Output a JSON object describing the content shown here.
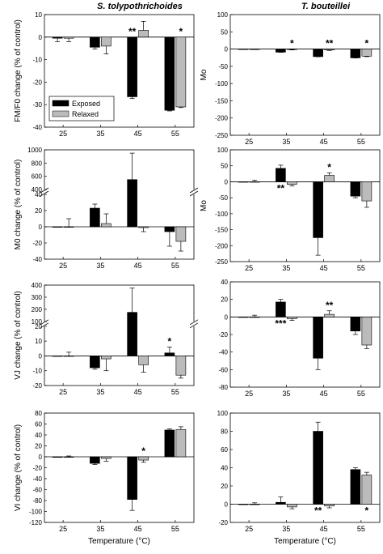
{
  "columns": [
    {
      "title": "S. tolypothrichoides"
    },
    {
      "title": "T. bouteillei"
    }
  ],
  "legend": {
    "exposed": "Exposed",
    "relaxed": "Relaxed"
  },
  "colors": {
    "exposed": "#000000",
    "relaxed": "#bbbbbb"
  },
  "chart_data": [
    {
      "type": "bar",
      "panel": "A1",
      "categories": [
        "25",
        "35",
        "45",
        "55"
      ],
      "xlabel": "",
      "ylabel": "FM/F0 change (% of control)",
      "ylim": [
        -40,
        10
      ],
      "yticks": [
        -40,
        -30,
        -20,
        -10,
        0,
        10
      ],
      "legend_position": "lower-left",
      "series": [
        {
          "name": "Exposed",
          "values": [
            -0.5,
            -4.5,
            -26.5,
            -32.5
          ],
          "errors": [
            1.5,
            0.8,
            0.8,
            0.3
          ]
        },
        {
          "name": "Relaxed",
          "values": [
            -0.5,
            -4,
            3,
            -31
          ],
          "errors": [
            1.5,
            3.5,
            4,
            0.3
          ]
        }
      ],
      "annotations": [
        {
          "category": "45",
          "series": "Exposed",
          "text": "**"
        },
        {
          "category": "55",
          "series": "Relaxed",
          "text": "*"
        }
      ]
    },
    {
      "type": "bar",
      "panel": "A2",
      "categories": [
        "25",
        "35",
        "45",
        "55"
      ],
      "xlabel": "",
      "ylabel": "Mo",
      "ylim": [
        -250,
        100
      ],
      "yticks": [
        -250,
        -200,
        -150,
        -100,
        -50,
        0,
        50,
        100
      ],
      "series": [
        {
          "name": "Exposed",
          "values": [
            0,
            -9,
            -22,
            -25.5
          ],
          "errors": [
            0,
            0.5,
            0.3,
            0.3
          ]
        },
        {
          "name": "Relaxed",
          "values": [
            0,
            -1,
            -2.5,
            -20.5
          ],
          "errors": [
            0.5,
            1.5,
            1.5,
            1.5
          ]
        }
      ],
      "annotations": [
        {
          "category": "35",
          "series": "Relaxed",
          "text": "*"
        },
        {
          "category": "45",
          "series": "Relaxed",
          "text": "**"
        },
        {
          "category": "55",
          "series": "Relaxed",
          "text": "*"
        }
      ]
    },
    {
      "type": "bar",
      "panel": "B1",
      "categories": [
        "25",
        "35",
        "45",
        "55"
      ],
      "xlabel": "",
      "ylabel": "M0 change (% of control)",
      "ylim": [
        -40,
        1000
      ],
      "yticks": [
        -40,
        -20,
        0,
        20,
        40,
        400,
        600,
        800,
        1000
      ],
      "axis_break": [
        40,
        400
      ],
      "series": [
        {
          "name": "Exposed",
          "values": [
            0,
            23,
            550,
            -6
          ],
          "errors": [
            0,
            5,
            400,
            18
          ]
        },
        {
          "name": "Relaxed",
          "values": [
            0,
            4,
            -1,
            -18
          ],
          "errors": [
            10,
            12,
            5,
            12
          ]
        }
      ]
    },
    {
      "type": "bar",
      "panel": "B2",
      "categories": [
        "25",
        "35",
        "45",
        "55"
      ],
      "xlabel": "",
      "ylabel": "Mo",
      "ylim": [
        -250,
        100
      ],
      "yticks": [
        -250,
        -200,
        -150,
        -100,
        -50,
        0,
        50,
        100
      ],
      "series": [
        {
          "name": "Exposed",
          "values": [
            0,
            42,
            -175,
            -45
          ],
          "errors": [
            0,
            10,
            55,
            5
          ]
        },
        {
          "name": "Relaxed",
          "values": [
            0,
            -8,
            20,
            -60
          ],
          "errors": [
            5,
            5,
            8,
            20
          ]
        }
      ],
      "annotations": [
        {
          "category": "35",
          "series": "Exposed",
          "text": "**",
          "position": "below"
        },
        {
          "category": "45",
          "series": "Relaxed",
          "text": "*"
        }
      ]
    },
    {
      "type": "bar",
      "panel": "C1",
      "categories": [
        "25",
        "35",
        "45",
        "55"
      ],
      "xlabel": "",
      "ylabel": "VJ change (% of control)",
      "ylim": [
        -20,
        400
      ],
      "yticks": [
        -20,
        -10,
        0,
        10,
        20,
        100,
        200,
        300,
        400
      ],
      "axis_break": [
        20,
        100
      ],
      "series": [
        {
          "name": "Exposed",
          "values": [
            0,
            -8,
            175,
            2
          ],
          "errors": [
            0,
            1,
            200,
            4
          ]
        },
        {
          "name": "Relaxed",
          "values": [
            0,
            -2,
            -6,
            -13
          ],
          "errors": [
            2.5,
            8,
            5,
            2
          ]
        }
      ],
      "annotations": [
        {
          "category": "55",
          "series": "Exposed",
          "text": "*"
        }
      ]
    },
    {
      "type": "bar",
      "panel": "C2",
      "categories": [
        "25",
        "35",
        "45",
        "55"
      ],
      "xlabel": "",
      "ylabel": "",
      "ylim": [
        -80,
        40
      ],
      "yticks": [
        -80,
        -60,
        -40,
        -20,
        0,
        20,
        40
      ],
      "series": [
        {
          "name": "Exposed",
          "values": [
            0,
            17,
            -47,
            -16
          ],
          "errors": [
            0,
            3,
            13,
            4
          ]
        },
        {
          "name": "Relaxed",
          "values": [
            0,
            -2,
            3,
            -32
          ],
          "errors": [
            2,
            2,
            4,
            4
          ]
        }
      ],
      "annotations": [
        {
          "category": "35",
          "series": "Exposed",
          "text": "***",
          "position": "below"
        },
        {
          "category": "45",
          "series": "Relaxed",
          "text": "**"
        }
      ]
    },
    {
      "type": "bar",
      "panel": "D1",
      "categories": [
        "25",
        "35",
        "45",
        "55"
      ],
      "xlabel": "Temperature (°C)",
      "ylabel": "VI change (% of control)",
      "ylim": [
        -120,
        80
      ],
      "yticks": [
        -120,
        -100,
        -80,
        -60,
        -40,
        -20,
        0,
        20,
        40,
        60,
        80
      ],
      "series": [
        {
          "name": "Exposed",
          "values": [
            -1,
            -12,
            -78,
            49
          ],
          "errors": [
            0,
            2,
            20,
            2
          ]
        },
        {
          "name": "Relaxed",
          "values": [
            0,
            -3,
            -6,
            50
          ],
          "errors": [
            1.5,
            5,
            4,
            5
          ]
        }
      ],
      "annotations": [
        {
          "category": "45",
          "series": "Relaxed",
          "text": "*"
        }
      ]
    },
    {
      "type": "bar",
      "panel": "D2",
      "categories": [
        "25",
        "35",
        "45",
        "55"
      ],
      "xlabel": "Temperature (°C)",
      "ylabel": "",
      "ylim": [
        -20,
        100
      ],
      "yticks": [
        -20,
        0,
        20,
        40,
        60,
        80,
        100
      ],
      "series": [
        {
          "name": "Exposed",
          "values": [
            0,
            2,
            80,
            38
          ],
          "errors": [
            0,
            6,
            10,
            2
          ]
        },
        {
          "name": "Relaxed",
          "values": [
            0,
            -3,
            -2,
            32
          ],
          "errors": [
            1.5,
            2,
            2,
            3
          ]
        }
      ],
      "annotations": [
        {
          "category": "45",
          "series": "Exposed",
          "text": "**",
          "position": "below"
        },
        {
          "category": "55",
          "series": "Relaxed",
          "text": "*",
          "position": "below"
        }
      ]
    }
  ]
}
